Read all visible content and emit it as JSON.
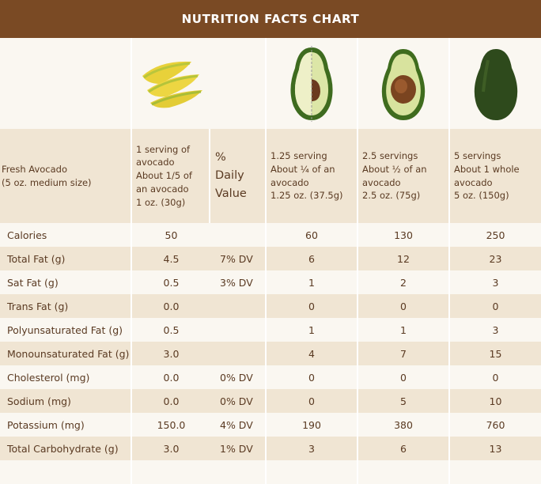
{
  "header": {
    "title": "NUTRITION FACTS CHART"
  },
  "columns": [
    {
      "label": "Fresh Avocado\n(5 oz. medium size)"
    },
    {
      "label": "1 serving of\navocado\nAbout 1/5 of\nan avocado\n1 oz. (30g)"
    },
    {
      "label": "%\nDaily\nValue"
    },
    {
      "label": "1.25 serving\nAbout ¼ of an\navocado\n1.25 oz. (37.5g)"
    },
    {
      "label": "2.5 servings\nAbout ½ of an\navocado\n2.5 oz. (75g)"
    },
    {
      "label": "5 servings\nAbout 1 whole\navocado\n5 oz. (150g)"
    }
  ],
  "images": [
    {
      "icon": "avocado-slices-icon"
    },
    {
      "icon": "avocado-half-cut-icon"
    },
    {
      "icon": "avocado-half-pit-icon"
    },
    {
      "icon": "avocado-whole-icon"
    }
  ],
  "rows": [
    {
      "name": "Calories",
      "serving": "50",
      "dv": "",
      "q": "60",
      "h": "130",
      "w": "250"
    },
    {
      "name": "Total Fat (g)",
      "serving": "4.5",
      "dv": "7% DV",
      "q": "6",
      "h": "12",
      "w": "23"
    },
    {
      "name": "Sat Fat (g)",
      "serving": "0.5",
      "dv": "3% DV",
      "q": "1",
      "h": "2",
      "w": "3"
    },
    {
      "name": "Trans Fat (g)",
      "serving": "0.0",
      "dv": "",
      "q": "0",
      "h": "0",
      "w": "0"
    },
    {
      "name": "Polyunsaturated Fat (g)",
      "serving": "0.5",
      "dv": "",
      "q": "1",
      "h": "1",
      "w": "3"
    },
    {
      "name": "Monounsaturated Fat (g)",
      "serving": "3.0",
      "dv": "",
      "q": "4",
      "h": "7",
      "w": "15"
    },
    {
      "name": "Cholesterol (mg)",
      "serving": "0.0",
      "dv": "0% DV",
      "q": "0",
      "h": "0",
      "w": "0"
    },
    {
      "name": "Sodium (mg)",
      "serving": "0.0",
      "dv": "0% DV",
      "q": "0",
      "h": "5",
      "w": "10"
    },
    {
      "name": "Potassium (mg)",
      "serving": "150.0",
      "dv": "4% DV",
      "q": "190",
      "h": "380",
      "w": "760"
    },
    {
      "name": "Total Carbohydrate (g)",
      "serving": "3.0",
      "dv": "1% DV",
      "q": "3",
      "h": "6",
      "w": "13"
    },
    {
      "name": "",
      "serving": "",
      "dv": "",
      "q": "",
      "h": "",
      "w": ""
    }
  ],
  "colors": {
    "header_bg": "#7a4a24",
    "row_light": "#faf7f1",
    "row_dark": "#f0e5d3",
    "text": "#5a3a22"
  }
}
